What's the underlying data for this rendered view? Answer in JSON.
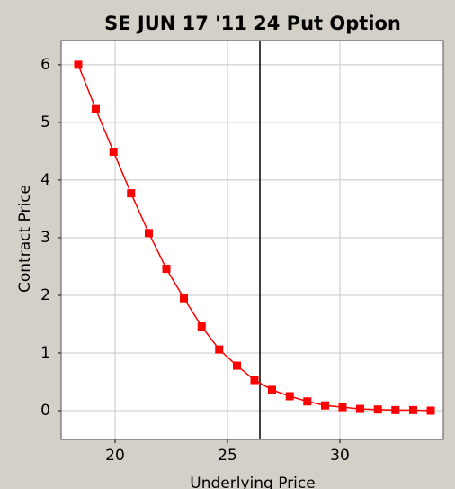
{
  "chart_data": {
    "type": "line",
    "title": "SE JUN 17 '11 24 Put Option",
    "x_label": "Underlying Price",
    "y_label": "Contract Price",
    "x": [
      18.36,
      19.14,
      19.93,
      20.71,
      21.5,
      22.28,
      23.06,
      23.85,
      24.63,
      25.42,
      26.2,
      26.98,
      27.77,
      28.55,
      29.34,
      30.12,
      30.9,
      31.69,
      32.47,
      33.26,
      34.04
    ],
    "series": [
      {
        "color": "#ff0000",
        "values": [
          6.0,
          5.23,
          4.49,
          3.77,
          3.08,
          2.46,
          1.95,
          1.46,
          1.06,
          0.78,
          0.53,
          0.36,
          0.25,
          0.16,
          0.09,
          0.06,
          0.03,
          0.02,
          0.01,
          0.01,
          0.0
        ]
      }
    ],
    "reference_x": 26.44,
    "xlim": [
      17.6,
      34.6
    ],
    "ylim": [
      -0.5,
      6.42
    ],
    "xticks": [
      20,
      25,
      30
    ],
    "yticks": [
      0,
      1,
      2,
      3,
      4,
      5,
      6
    ],
    "grid": true
  }
}
